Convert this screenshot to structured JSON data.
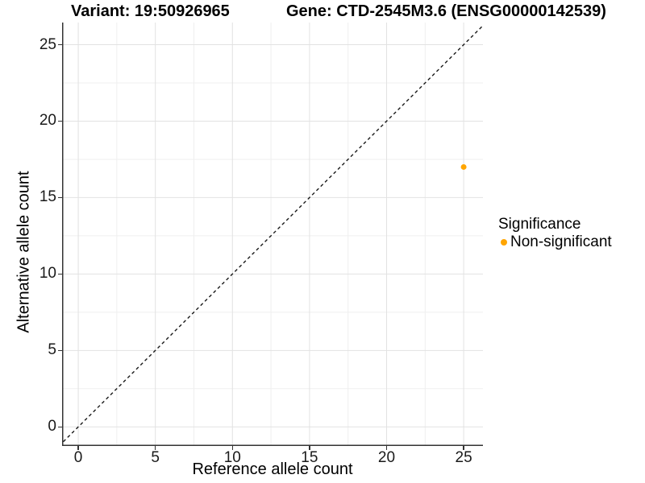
{
  "titles": {
    "variant": "Variant: 19:50926965",
    "gene": "Gene: CTD-2545M3.6 (ENSG00000142539)"
  },
  "legend": {
    "title": "Significance",
    "items": [
      {
        "label": "Non-significant",
        "color": "#FFA500"
      }
    ]
  },
  "colors": {
    "axis_line": "#333333",
    "tick_text": "#1a1a1a",
    "grid_major": "#e2e2e2",
    "grid_minor": "#efefef",
    "identity_line": "#1a1a1a",
    "point_orange": "#FFA500",
    "background": "#ffffff"
  },
  "chart_data": {
    "type": "scatter",
    "title_left": "Variant: 19:50926965",
    "title_right": "Gene: CTD-2545M3.6 (ENSG00000142539)",
    "xlabel": "Reference allele count",
    "ylabel": "Alternative allele count",
    "xlim": [
      -1.05,
      26.25
    ],
    "ylim": [
      -1.25,
      26.45
    ],
    "x_ticks": [
      0,
      5,
      10,
      15,
      20,
      25
    ],
    "y_ticks": [
      0,
      5,
      10,
      15,
      20,
      25
    ],
    "x_minor_ticks": [
      2.5,
      7.5,
      12.5,
      17.5,
      22.5
    ],
    "y_minor_ticks": [
      2.5,
      7.5,
      12.5,
      17.5,
      22.5
    ],
    "grid": "major+minor",
    "legend_position": "right",
    "series": [
      {
        "name": "Non-significant",
        "color": "#FFA500",
        "marker_radius": 3.5,
        "points": [
          {
            "x": 25,
            "y": 17
          }
        ]
      }
    ],
    "reference_line": {
      "type": "identity y=x",
      "style": "dashed",
      "color": "#1a1a1a"
    }
  }
}
